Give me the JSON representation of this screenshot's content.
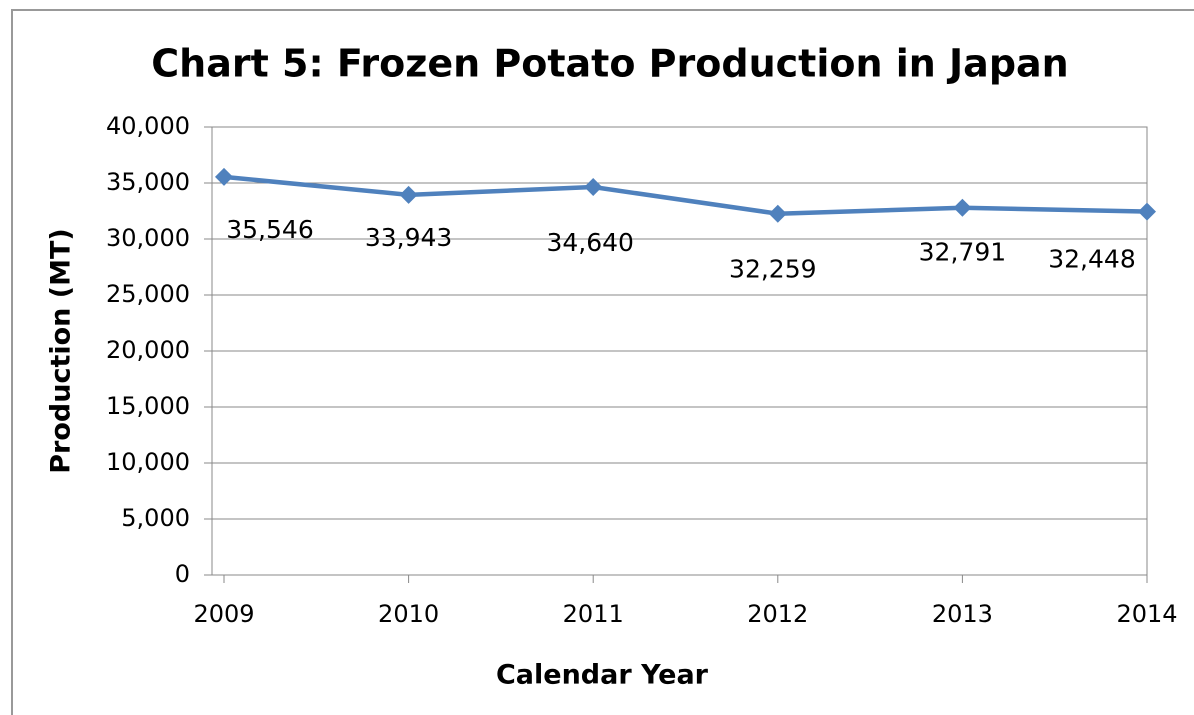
{
  "chart_data": {
    "type": "line",
    "title": "Chart 5:  Frozen Potato Production in Japan",
    "x_label": "Calendar Year",
    "y_label": "Production (MT)",
    "categories": [
      "2009",
      "2010",
      "2011",
      "2012",
      "2013",
      "2014"
    ],
    "series": [
      {
        "name": "Production",
        "color": "#4f81bd",
        "values": [
          35546,
          33943,
          34640,
          32259,
          32791,
          32448
        ],
        "value_labels": [
          "35,546",
          "33,943",
          "34,640",
          "32,259",
          "32,791",
          "32,448"
        ]
      }
    ],
    "ylim": [
      0,
      40000
    ],
    "yticks": [
      0,
      {
        "value": 5000,
        "label": "5,000"
      },
      {
        "value": 10000,
        "label": "10,000"
      },
      {
        "value": 15000,
        "label": "15,000"
      },
      {
        "value": 20000,
        "label": "20,000"
      },
      {
        "value": 25000,
        "label": "25,000"
      },
      {
        "value": 30000,
        "label": "30,000"
      },
      {
        "value": 35000,
        "label": "35,000"
      },
      {
        "value": 40000,
        "label": "40,000"
      }
    ],
    "grid": true
  }
}
